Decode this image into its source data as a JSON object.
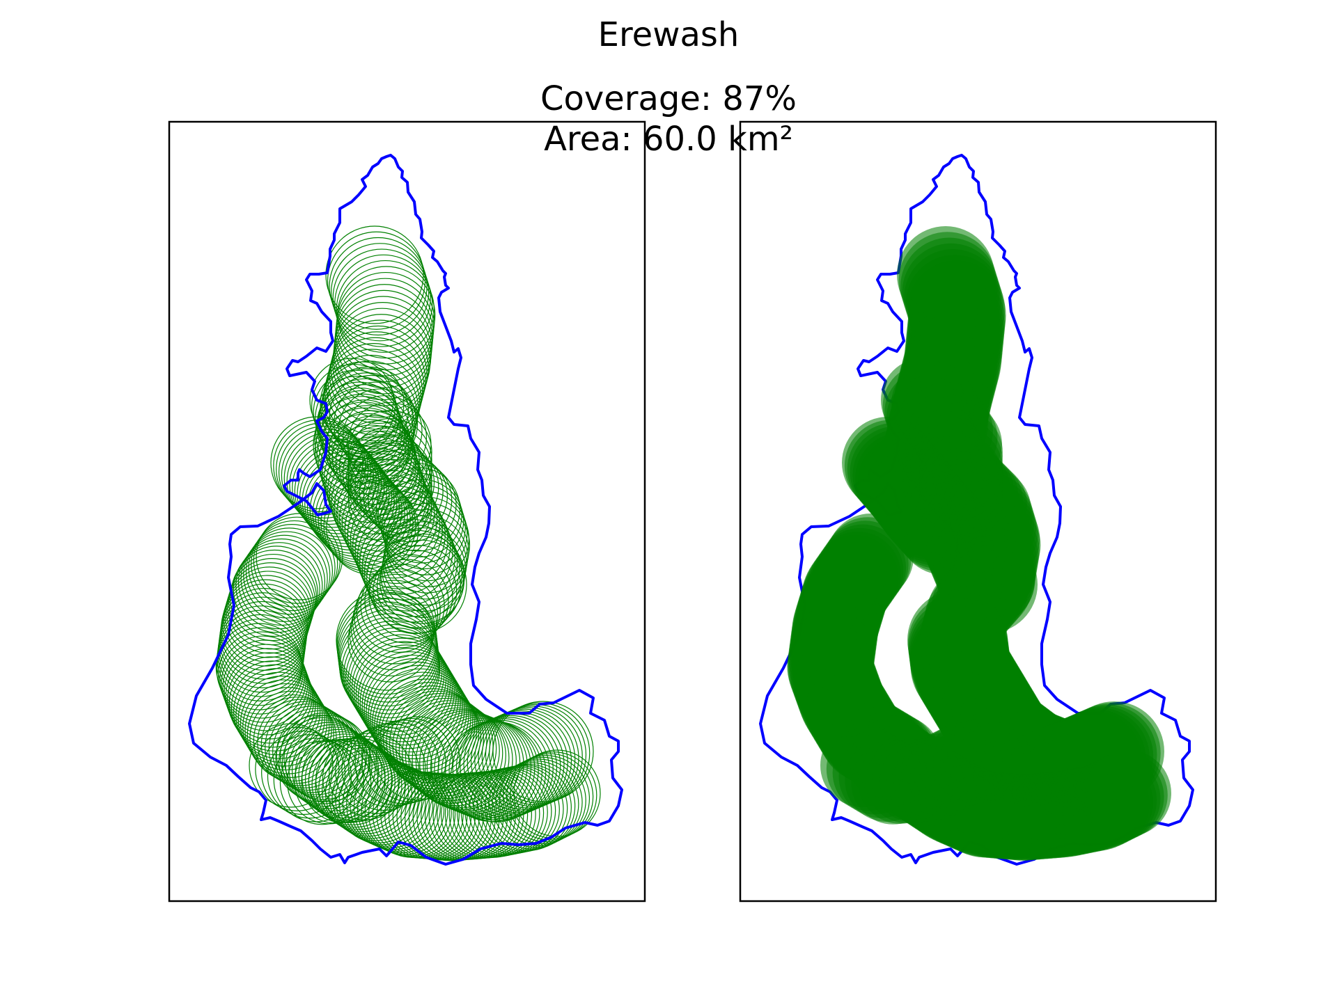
{
  "figure": {
    "title": "Erewash",
    "coverage_text": "Coverage: 87%",
    "area_text": "Area: 60.0 km²"
  },
  "colors": {
    "boundary": "#0000ff",
    "circles": "#008000",
    "frame": "#000000",
    "background": "#ffffff"
  },
  "panels": [
    {
      "name": "outline-circles",
      "style": "outlined circles"
    },
    {
      "name": "filled-circles",
      "style": "filled circles"
    }
  ]
}
